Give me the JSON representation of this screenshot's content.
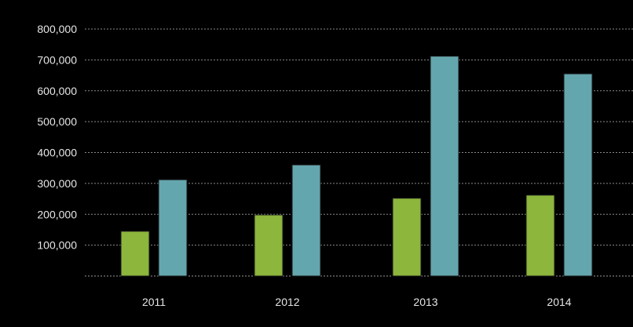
{
  "chart_data": {
    "type": "bar",
    "categories": [
      "2011",
      "2012",
      "2013",
      "2014"
    ],
    "series": [
      {
        "values": [
          145000,
          198000,
          252000,
          262000
        ],
        "color": "#8cb63c"
      },
      {
        "values": [
          312000,
          360000,
          712000,
          655000
        ],
        "color": "#64a6ae"
      }
    ],
    "ylim": [
      0,
      800000
    ],
    "yticks": [
      100000,
      200000,
      300000,
      400000,
      500000,
      600000,
      700000,
      800000
    ],
    "ytick_labels": [
      "100,000",
      "200,000",
      "300,000",
      "400,000",
      "500,000",
      "600,000",
      "700,000",
      "800,000"
    ],
    "grid": true,
    "legend": false,
    "background": "#000000",
    "text_color": "#e6e6e6"
  }
}
